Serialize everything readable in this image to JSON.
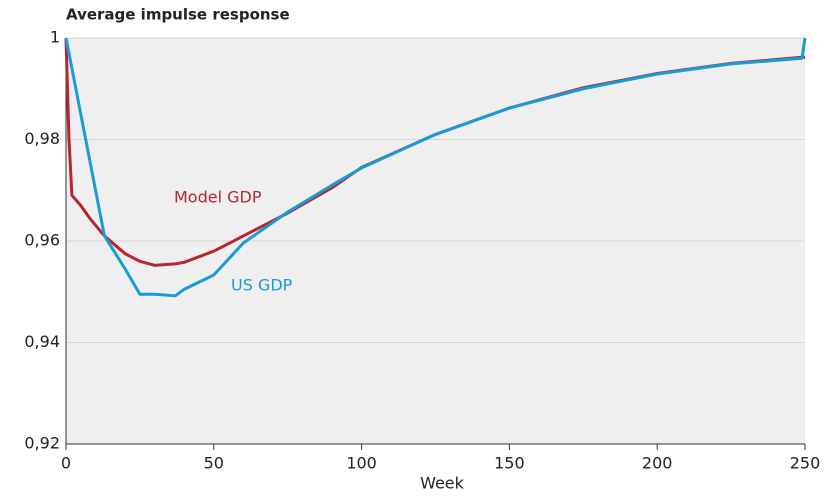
{
  "chart_data": {
    "type": "line",
    "title": "Average impulse response",
    "x_label": "Week",
    "x": [
      0,
      1,
      2,
      5,
      8,
      13,
      20,
      25,
      30,
      37,
      40,
      50,
      60,
      75,
      90,
      100,
      125,
      150,
      175,
      200,
      225,
      249,
      250
    ],
    "series": [
      {
        "name": "Model GDP",
        "color": "#b5262f",
        "values": [
          1,
          0.98,
          0.969,
          0.967,
          0.9645,
          0.961,
          0.9575,
          0.956,
          0.9552,
          0.9555,
          0.9558,
          0.958,
          0.961,
          0.9655,
          0.9705,
          0.9745,
          0.981,
          0.9862,
          0.9902,
          0.993,
          0.995,
          0.9962,
          0.9962
        ]
      },
      {
        "name": "US GDP",
        "color": "#1a9bd7",
        "values": [
          1,
          0.997,
          0.994,
          0.985,
          0.976,
          0.961,
          0.9545,
          0.9495,
          0.9495,
          0.9492,
          0.9505,
          0.9533,
          0.9596,
          0.9657,
          0.971,
          0.9744,
          0.981,
          0.9862,
          0.99,
          0.9929,
          0.9949,
          0.996,
          1
        ]
      }
    ],
    "xlim": [
      0,
      250
    ],
    "xticks": [
      0,
      50,
      100,
      150,
      200,
      250
    ],
    "ylim": [
      0.92,
      1
    ],
    "yticks": [
      {
        "value": 0.92,
        "label": "0,92"
      },
      {
        "value": 0.94,
        "label": "0,94"
      },
      {
        "value": 0.96,
        "label": "0,96"
      },
      {
        "value": 0.98,
        "label": "0,98"
      },
      {
        "value": 1,
        "label": "1"
      }
    ],
    "grid": true
  }
}
